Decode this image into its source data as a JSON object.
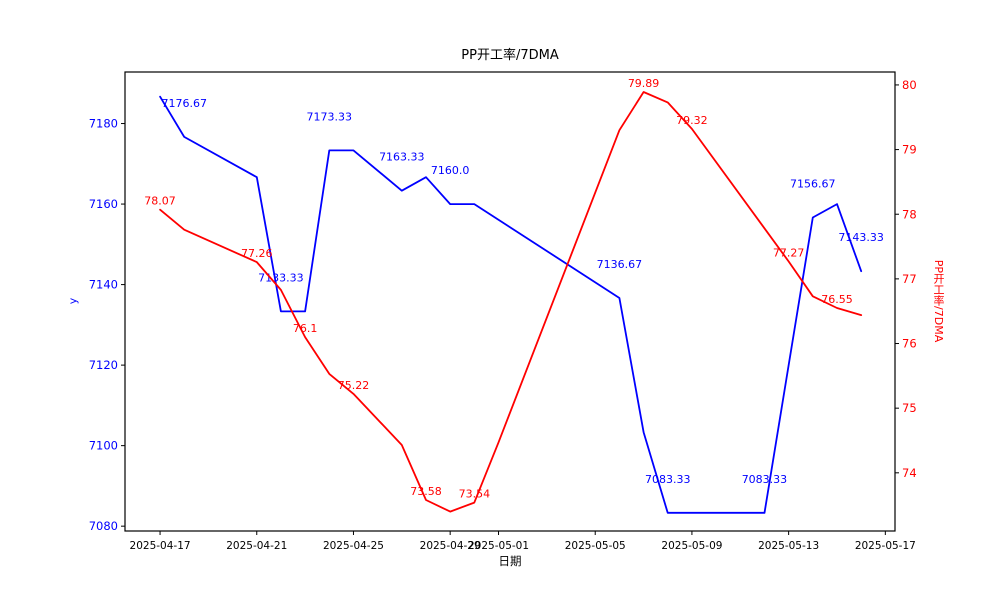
{
  "chart_data": {
    "type": "line",
    "title": "PP开工率/7DMA",
    "xlabel": "日期",
    "ylabel_left": "y",
    "ylabel_right": "PP开工率/7DMA",
    "grid": false,
    "legend": "none",
    "colors": {
      "left_series": "#0000ff",
      "right_series": "#ff0000",
      "frame": "#000000"
    },
    "x_start_date": "2025-04-17",
    "xlim_days": [
      -1.45,
      30.4
    ],
    "ylim_left": [
      7078.8,
      7192.8
    ],
    "ylim_right": [
      73.1,
      80.2
    ],
    "x_tick_labels": [
      "2025-04-17",
      "2025-04-21",
      "2025-04-25",
      "2025-04-29",
      "2025-05-01",
      "2025-05-05",
      "2025-05-09",
      "2025-05-13",
      "2025-05-17"
    ],
    "y_ticks_left": [
      7180,
      7160,
      7140,
      7120,
      7100,
      7080
    ],
    "y_ticks_right": [
      80,
      79,
      78,
      77,
      76,
      75,
      74
    ],
    "series": [
      {
        "name": "y",
        "axis": "left",
        "color": "#0000ff",
        "points": [
          {
            "date": "2025-04-17",
            "value": 7186.67,
            "label": null
          },
          {
            "date": "2025-04-18",
            "value": 7176.67,
            "label": "7176.67"
          },
          {
            "date": "2025-04-21",
            "value": 7166.67,
            "label": null
          },
          {
            "date": "2025-04-22",
            "value": 7133.33,
            "label": "7133.33"
          },
          {
            "date": "2025-04-23",
            "value": 7133.33,
            "label": null
          },
          {
            "date": "2025-04-24",
            "value": 7173.33,
            "label": "7173.33"
          },
          {
            "date": "2025-04-25",
            "value": 7173.33,
            "label": null
          },
          {
            "date": "2025-04-27",
            "value": 7163.33,
            "label": "7163.33"
          },
          {
            "date": "2025-04-28",
            "value": 7166.67,
            "label": null
          },
          {
            "date": "2025-04-29",
            "value": 7160.0,
            "label": "7160.0"
          },
          {
            "date": "2025-04-30",
            "value": 7160.0,
            "label": null
          },
          {
            "date": "2025-05-06",
            "value": 7136.67,
            "label": "7136.67"
          },
          {
            "date": "2025-05-07",
            "value": 7103.33,
            "label": null
          },
          {
            "date": "2025-05-08",
            "value": 7083.33,
            "label": "7083.33"
          },
          {
            "date": "2025-05-12",
            "value": 7083.33,
            "label": "7083.33"
          },
          {
            "date": "2025-05-14",
            "value": 7156.67,
            "label": "7156.67"
          },
          {
            "date": "2025-05-15",
            "value": 7160.0,
            "label": null
          },
          {
            "date": "2025-05-16",
            "value": 7143.33,
            "label": "7143.33"
          }
        ]
      },
      {
        "name": "PP开工率/7DMA",
        "axis": "right",
        "color": "#ff0000",
        "points": [
          {
            "date": "2025-04-17",
            "value": 78.07,
            "label": "78.07"
          },
          {
            "date": "2025-04-18",
            "value": 77.76,
            "label": null
          },
          {
            "date": "2025-04-21",
            "value": 77.26,
            "label": "77.26"
          },
          {
            "date": "2025-04-22",
            "value": 76.83,
            "label": null
          },
          {
            "date": "2025-04-23",
            "value": 76.1,
            "label": "76.1"
          },
          {
            "date": "2025-04-24",
            "value": 75.53,
            "label": null
          },
          {
            "date": "2025-04-25",
            "value": 75.22,
            "label": "75.22"
          },
          {
            "date": "2025-04-27",
            "value": 74.43,
            "label": null
          },
          {
            "date": "2025-04-28",
            "value": 73.58,
            "label": "73.58"
          },
          {
            "date": "2025-04-29",
            "value": 73.4,
            "label": null
          },
          {
            "date": "2025-04-30",
            "value": 73.54,
            "label": "73.54"
          },
          {
            "date": "2025-05-01",
            "value": 74.47,
            "label": null
          },
          {
            "date": "2025-05-06",
            "value": 79.3,
            "label": null
          },
          {
            "date": "2025-05-07",
            "value": 79.89,
            "label": "79.89"
          },
          {
            "date": "2025-05-08",
            "value": 79.73,
            "label": null
          },
          {
            "date": "2025-05-09",
            "value": 79.32,
            "label": "79.32"
          },
          {
            "date": "2025-05-13",
            "value": 77.27,
            "label": "77.27"
          },
          {
            "date": "2025-05-14",
            "value": 76.73,
            "label": null
          },
          {
            "date": "2025-05-15",
            "value": 76.55,
            "label": "76.55"
          },
          {
            "date": "2025-05-16",
            "value": 76.44,
            "label": null
          }
        ]
      }
    ]
  }
}
